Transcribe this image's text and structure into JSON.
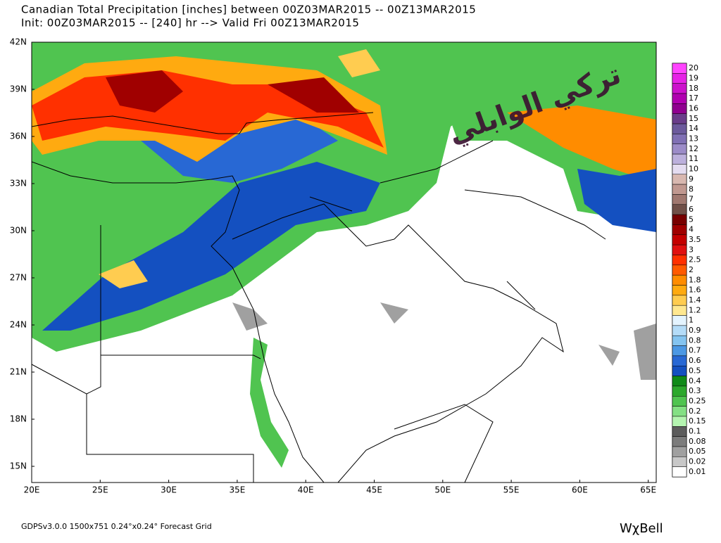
{
  "header": {
    "line1": "Canadian Total Precipitation [inches] between 00Z03MAR2015 -- 00Z13MAR2015",
    "line2": "Init: 00Z03MAR2015 -- [240] hr --> Valid Fri 00Z13MAR2015"
  },
  "map": {
    "lat_labels": [
      "42N",
      "39N",
      "36N",
      "33N",
      "30N",
      "27N",
      "24N",
      "21N",
      "18N",
      "15N"
    ],
    "lon_labels": [
      "20E",
      "25E",
      "30E",
      "35E",
      "40E",
      "45E",
      "50E",
      "55E",
      "60E",
      "65E"
    ],
    "watermark": "تركي الوابلي"
  },
  "colorbar": [
    {
      "label": "20",
      "color": "#ff44ff"
    },
    {
      "label": "19",
      "color": "#e622e6"
    },
    {
      "label": "18",
      "color": "#cc11cc"
    },
    {
      "label": "17",
      "color": "#b000b0"
    },
    {
      "label": "16",
      "color": "#900090"
    },
    {
      "label": "15",
      "color": "#6a3d8a"
    },
    {
      "label": "14",
      "color": "#6c5a9c"
    },
    {
      "label": "13",
      "color": "#8070b4"
    },
    {
      "label": "12",
      "color": "#9c8cc8"
    },
    {
      "label": "11",
      "color": "#bcb0dc"
    },
    {
      "label": "10",
      "color": "#e4dcf0"
    },
    {
      "label": "9",
      "color": "#d8b8b0"
    },
    {
      "label": "8",
      "color": "#c09890"
    },
    {
      "label": "7",
      "color": "#a07870"
    },
    {
      "label": "6",
      "color": "#705048"
    },
    {
      "label": "5",
      "color": "#780000"
    },
    {
      "label": "4",
      "color": "#a00000"
    },
    {
      "label": "3.5",
      "color": "#c40000"
    },
    {
      "label": "3",
      "color": "#e01010"
    },
    {
      "label": "2.5",
      "color": "#ff3000"
    },
    {
      "label": "2",
      "color": "#ff5a00"
    },
    {
      "label": "1.8",
      "color": "#ff8c00"
    },
    {
      "label": "1.6",
      "color": "#ffaa10"
    },
    {
      "label": "1.4",
      "color": "#ffcc50"
    },
    {
      "label": "1.2",
      "color": "#ffe890"
    },
    {
      "label": "1",
      "color": "#e4f4ff"
    },
    {
      "label": "0.9",
      "color": "#b4dcf8"
    },
    {
      "label": "0.8",
      "color": "#84c4f0"
    },
    {
      "label": "0.7",
      "color": "#4c98e4"
    },
    {
      "label": "0.6",
      "color": "#2868d4"
    },
    {
      "label": "0.5",
      "color": "#1450c0"
    },
    {
      "label": "0.4",
      "color": "#108a18"
    },
    {
      "label": "0.3",
      "color": "#2ca82c"
    },
    {
      "label": "0.25",
      "color": "#50c450"
    },
    {
      "label": "0.2",
      "color": "#84e084"
    },
    {
      "label": "0.15",
      "color": "#b4f4b0"
    },
    {
      "label": "0.1",
      "color": "#5c5c5c"
    },
    {
      "label": "0.08",
      "color": "#7c7c7c"
    },
    {
      "label": "0.05",
      "color": "#a0a0a0"
    },
    {
      "label": "0.02",
      "color": "#c8c8c8"
    },
    {
      "label": "0.01",
      "color": "#ffffff"
    }
  ],
  "footer": {
    "left": "GDPSv3.0.0 1500x751 0.24°x0.24° Forecast Grid",
    "right": "WχBell"
  }
}
